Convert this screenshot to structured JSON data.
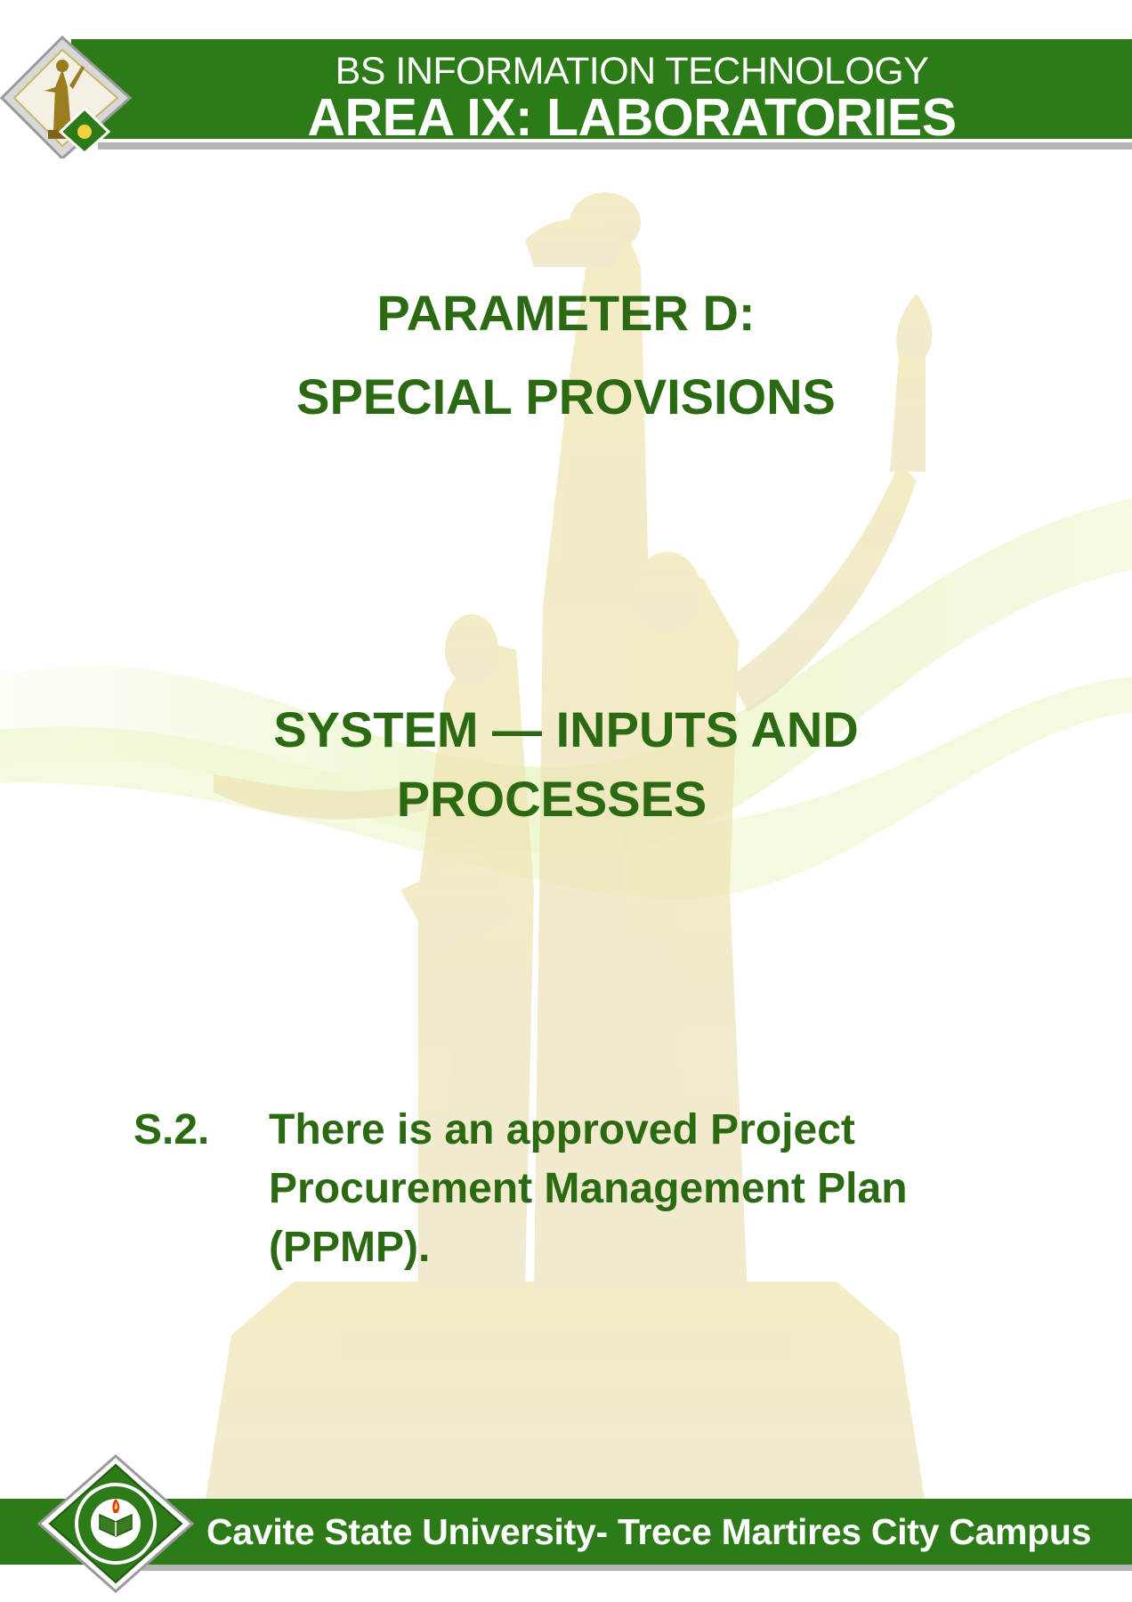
{
  "header": {
    "program": "BS INFORMATION TECHNOLOGY",
    "area": "AREA IX: LABORATORIES"
  },
  "parameter": {
    "line1": "PARAMETER D:",
    "line2": "SPECIAL PROVISIONS"
  },
  "section": {
    "line1": "SYSTEM — INPUTS AND",
    "line2": "PROCESSES"
  },
  "item": {
    "number": "S.2.",
    "line1": "There is an approved Project",
    "line2": "Procurement Management Plan",
    "line3": "(PPMP)."
  },
  "footer": {
    "campus": "Cavite State University- Trece Martires City Campus"
  },
  "colors": {
    "brand_green": "#2c7a18",
    "text_green": "#2b6a12",
    "rule_gray": "#b5b5b5"
  }
}
